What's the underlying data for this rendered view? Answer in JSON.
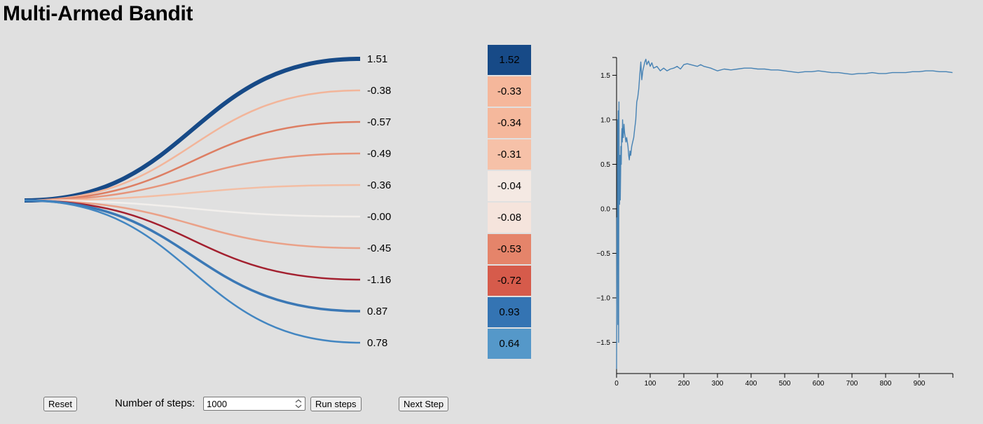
{
  "title": "Multi-Armed Bandit",
  "arms": [
    {
      "value": "1.51",
      "numeric": 1.51,
      "estimate": "1.52",
      "best": true,
      "color": "#174a87"
    },
    {
      "value": "-0.38",
      "numeric": -0.38,
      "estimate": "-0.33",
      "best": false,
      "color": "#f2b59a"
    },
    {
      "value": "-0.57",
      "numeric": -0.57,
      "estimate": "-0.34",
      "best": false,
      "color": "#dd7e63"
    },
    {
      "value": "-0.49",
      "numeric": -0.49,
      "estimate": "-0.31",
      "best": false,
      "color": "#e6947a"
    },
    {
      "value": "-0.36",
      "numeric": -0.36,
      "estimate": "-0.04",
      "best": false,
      "color": "#f3bda3"
    },
    {
      "value": "-0.00",
      "numeric": 0.0,
      "estimate": "-0.08",
      "best": false,
      "color": "#f2efec"
    },
    {
      "value": "-0.45",
      "numeric": -0.45,
      "estimate": "-0.53",
      "best": false,
      "color": "#eaa188"
    },
    {
      "value": "-1.16",
      "numeric": -1.16,
      "estimate": "-0.72",
      "best": false,
      "color": "#a3202f"
    },
    {
      "value": "0.87",
      "numeric": 0.87,
      "estimate": "0.93",
      "best": false,
      "color": "#3b78b5"
    },
    {
      "value": "0.78",
      "numeric": 0.78,
      "estimate": "0.64",
      "best": false,
      "color": "#4386c1"
    }
  ],
  "estimate_colors": [
    "#174a87",
    "#f5b79b",
    "#f5b89c",
    "#f6c1a8",
    "#f4e9e3",
    "#f5e4dc",
    "#e5846a",
    "#d65b4b",
    "#3474b3",
    "#5598c9"
  ],
  "estimate_text_colors": [
    "#000000",
    "#000000",
    "#000000",
    "#000000",
    "#000000",
    "#000000",
    "#000000",
    "#000000",
    "#000000",
    "#000000"
  ],
  "chart_data": {
    "type": "line",
    "title": "",
    "xlabel": "",
    "ylabel": "",
    "xlim": [
      0,
      1000
    ],
    "ylim": [
      -1.85,
      1.7
    ],
    "xticks": [
      0,
      100,
      200,
      300,
      400,
      500,
      600,
      700,
      800,
      900
    ],
    "xtick_labels": [
      "0",
      "100",
      "200",
      "300",
      "400",
      "500",
      "600",
      "700",
      "800",
      "900"
    ],
    "yticks": [
      -1.5,
      -1.0,
      -0.5,
      0.0,
      0.5,
      1.0,
      1.5
    ],
    "ytick_labels": [
      "−1.5",
      "−1.0",
      "−0.5",
      "0.0",
      "0.5",
      "1.0",
      "1.5"
    ],
    "line_color": "#4682b4",
    "series": [
      {
        "x": [
          0,
          1,
          2,
          3,
          4,
          5,
          6,
          7,
          8,
          9,
          10,
          11,
          12,
          13,
          14,
          15,
          16,
          17,
          18,
          19,
          20,
          22,
          24,
          26,
          28,
          30,
          32,
          34,
          36,
          38,
          40,
          42,
          45,
          48,
          51,
          54,
          57,
          60,
          63,
          66,
          69,
          72,
          75,
          78,
          81,
          84,
          87,
          90,
          95,
          100,
          105,
          110,
          120,
          130,
          140,
          150,
          160,
          170,
          180,
          190,
          200,
          210,
          220,
          230,
          240,
          250,
          260,
          280,
          300,
          320,
          340,
          360,
          380,
          400,
          420,
          440,
          460,
          480,
          500,
          520,
          540,
          560,
          580,
          600,
          620,
          640,
          660,
          680,
          700,
          720,
          740,
          760,
          780,
          800,
          820,
          840,
          860,
          880,
          900,
          920,
          940,
          960,
          980,
          999
        ],
        "y": [
          -1.8,
          -0.1,
          -0.5,
          1.0,
          -1.3,
          1.1,
          -1.5,
          1.2,
          0.3,
          0.05,
          0.6,
          0.1,
          0.4,
          0.7,
          0.5,
          0.8,
          0.9,
          0.75,
          1.0,
          0.85,
          0.8,
          0.95,
          0.85,
          0.8,
          0.75,
          0.8,
          0.75,
          0.7,
          0.6,
          0.55,
          0.65,
          0.6,
          0.7,
          0.75,
          0.8,
          0.9,
          1.0,
          1.2,
          1.25,
          1.35,
          1.5,
          1.65,
          1.45,
          1.55,
          1.6,
          1.65,
          1.68,
          1.62,
          1.66,
          1.6,
          1.64,
          1.58,
          1.6,
          1.55,
          1.58,
          1.55,
          1.57,
          1.58,
          1.6,
          1.57,
          1.62,
          1.63,
          1.62,
          1.61,
          1.6,
          1.62,
          1.6,
          1.58,
          1.55,
          1.57,
          1.56,
          1.57,
          1.58,
          1.58,
          1.57,
          1.57,
          1.56,
          1.56,
          1.55,
          1.54,
          1.53,
          1.54,
          1.54,
          1.55,
          1.54,
          1.53,
          1.53,
          1.52,
          1.51,
          1.52,
          1.52,
          1.53,
          1.52,
          1.52,
          1.53,
          1.53,
          1.53,
          1.54,
          1.54,
          1.55,
          1.55,
          1.54,
          1.54,
          1.53
        ]
      }
    ]
  },
  "controls": {
    "reset_label": "Reset",
    "steps_label": "Number of steps:",
    "steps_value": "1000",
    "run_label": "Run steps",
    "next_label": "Next Step"
  }
}
